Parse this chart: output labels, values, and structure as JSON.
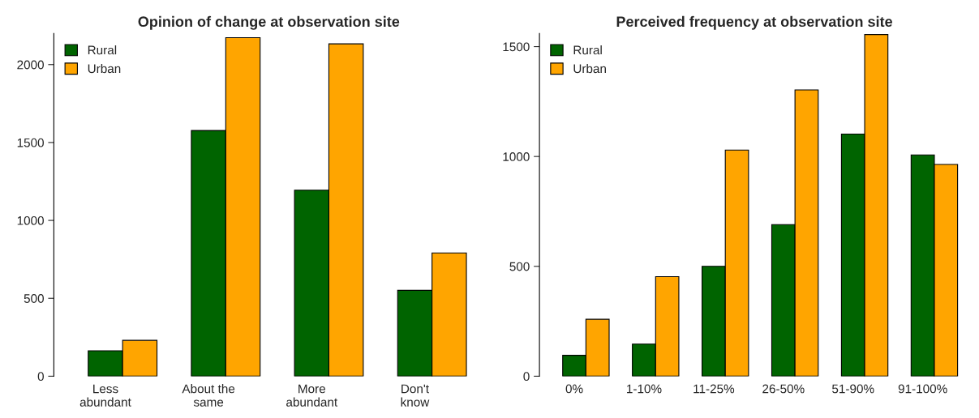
{
  "chart_data": [
    {
      "type": "bar",
      "title": "Opinion of change at observation site",
      "categories": [
        "Less\nabundant",
        "About the\nsame",
        "More\nabundant",
        "Don't\nknow"
      ],
      "series": [
        {
          "name": "Rural",
          "color": "#006400",
          "values": [
            163,
            1577,
            1194,
            551
          ]
        },
        {
          "name": "Urban",
          "color": "#ffa500",
          "values": [
            230,
            2173,
            2133,
            791
          ]
        }
      ],
      "ylim": [
        0,
        2200
      ],
      "yticks": [
        0,
        500,
        1000,
        1500,
        2000
      ],
      "legend": "top left",
      "grid": false
    },
    {
      "type": "bar",
      "title": "Perceived frequency at observation site",
      "categories": [
        "0%",
        "1-10%",
        "11-25%",
        "26-50%",
        "51-90%",
        "91-100%"
      ],
      "series": [
        {
          "name": "Rural",
          "color": "#006400",
          "values": [
            95,
            146,
            500,
            690,
            1102,
            1007
          ]
        },
        {
          "name": "Urban",
          "color": "#ffa500",
          "values": [
            259,
            453,
            1029,
            1303,
            1555,
            964
          ]
        }
      ],
      "ylim": [
        0,
        1560
      ],
      "yticks": [
        0,
        500,
        1000,
        1500
      ],
      "legend": "top left",
      "grid": false
    }
  ]
}
